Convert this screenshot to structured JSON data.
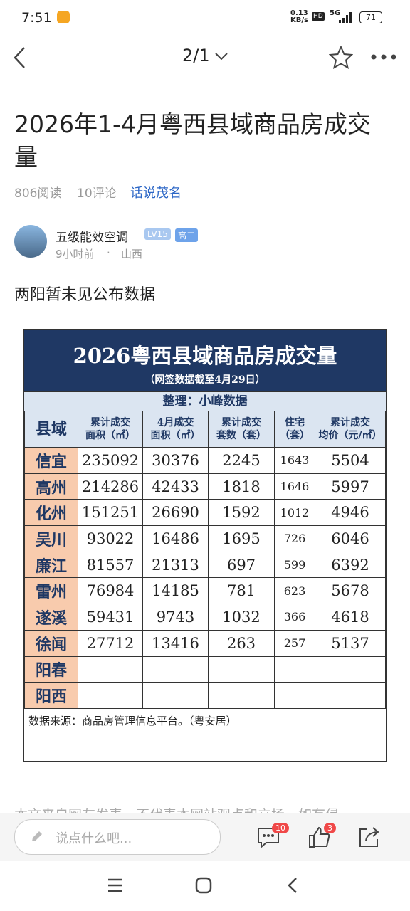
{
  "status_bar": {
    "time": "7:51",
    "net_speed": "0.13",
    "net_unit": "KB/s",
    "hd": "HD",
    "signal": "5G",
    "battery": "71"
  },
  "nav": {
    "page": "2/1"
  },
  "article": {
    "title": "2026年1-4月粤西县域商品房成交量",
    "reads": "806阅读",
    "comments": "10评论",
    "topic": "话说茂名"
  },
  "author": {
    "name": "五级能效空调",
    "level": "LV15",
    "grade": "高二",
    "time": "9小时前",
    "location": "山西"
  },
  "body": {
    "text": "两阳暂未见公布数据"
  },
  "table": {
    "title": "2026粤西县域商品房成交量",
    "subtitle": "（网签数据截至4月29日）",
    "compiler": "整理：小峰数据",
    "headers": [
      [
        "县域"
      ],
      [
        "累计成交",
        "面积（㎡）"
      ],
      [
        "4月成交",
        "面积（㎡）"
      ],
      [
        "累计成交",
        "套数（套）"
      ],
      [
        "住宅",
        "（套）"
      ],
      [
        "累计成交",
        "均价（元/㎡）"
      ]
    ],
    "rows": [
      [
        "信宜",
        235092,
        30376,
        2245,
        1643,
        5504
      ],
      [
        "高州",
        214286,
        42433,
        1818,
        1646,
        5997
      ],
      [
        "化州",
        151251,
        26690,
        1592,
        1012,
        4946
      ],
      [
        "吴川",
        93022,
        16486,
        1695,
        726,
        6046
      ],
      [
        "廉江",
        81557,
        21313,
        697,
        599,
        6392
      ],
      [
        "雷州",
        76984,
        14185,
        781,
        623,
        5678
      ],
      [
        "遂溪",
        59431,
        9743,
        1032,
        366,
        4618
      ],
      [
        "徐闻",
        27712,
        13416,
        263,
        257,
        5137
      ],
      [
        "阳春"
      ],
      [
        "阳西"
      ]
    ],
    "source": "数据来源：商品房管理信息平台。（粤安居）"
  },
  "footer_text": "本文来自网友发表，不代表本网站观点和立场，如有侵",
  "bottom_bar": {
    "placeholder": "说点什么吧...",
    "comment_count": "10",
    "like_count": "3"
  }
}
